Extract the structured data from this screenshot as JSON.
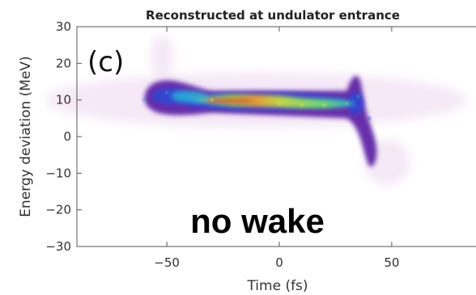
{
  "chart_data": {
    "type": "heatmap",
    "title": "Reconstructed at undulator entrance",
    "xlabel": "Time (fs)",
    "ylabel": "Energy deviation (MeV)",
    "xlim": [
      -90,
      90
    ],
    "ylim": [
      -30,
      30
    ],
    "xticks": [
      -50,
      0,
      50
    ],
    "yticks": [
      30,
      20,
      10,
      0,
      -10,
      -20,
      -30
    ],
    "xtick_labels": [
      "−50",
      "0",
      "50"
    ],
    "ytick_labels": [
      "30",
      "20",
      "10",
      "0",
      "−10",
      "−20",
      "−30"
    ],
    "panel_label": "(c)",
    "annotation": "no wake",
    "colormap": [
      "#f4e6f6",
      "#c9a0d8",
      "#5a1fa3",
      "#2c49d8",
      "#2bb0d8",
      "#6fe070",
      "#e8e040",
      "#f08a30",
      "#e03020"
    ],
    "grid": false,
    "density_ridge": {
      "time_fs": [
        -60,
        -50,
        -40,
        -30,
        -20,
        -10,
        0,
        10,
        20,
        30,
        35,
        40
      ],
      "energy_MeV": [
        10,
        12,
        11,
        10,
        10,
        9.5,
        9,
        8.5,
        8.5,
        9,
        11,
        5
      ],
      "intensity": [
        0.3,
        0.4,
        0.35,
        0.7,
        0.8,
        0.75,
        0.7,
        0.65,
        0.6,
        0.55,
        0.3,
        0.15
      ]
    }
  }
}
